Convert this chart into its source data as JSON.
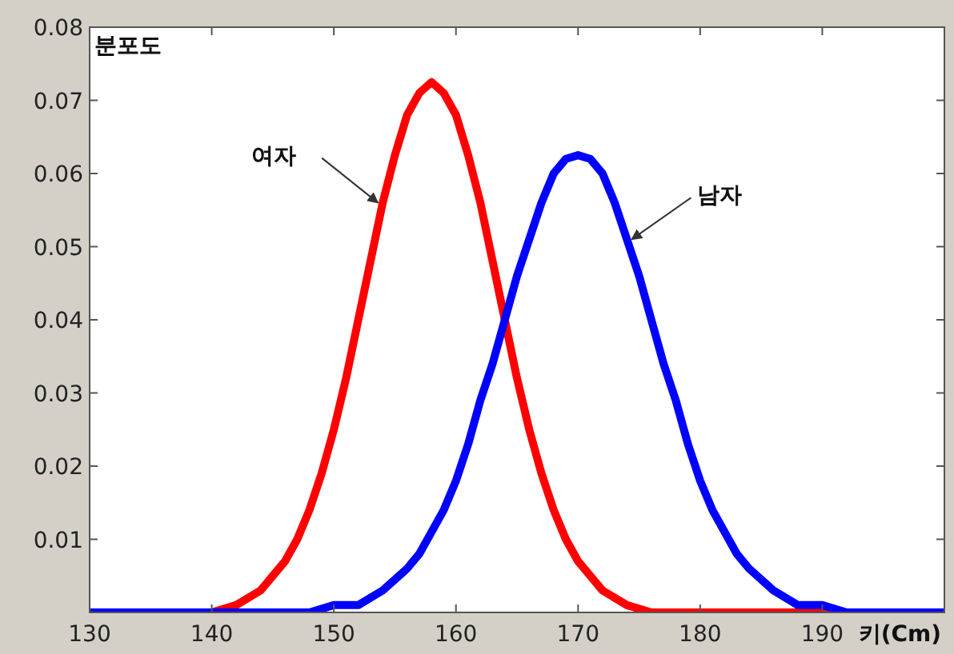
{
  "chart_data": {
    "type": "line",
    "xlabel": "키(Cm)",
    "ylabel": "분포도",
    "xlim": [
      130,
      200
    ],
    "ylim": [
      0,
      0.08
    ],
    "xticks": [
      130,
      140,
      150,
      160,
      170,
      180,
      190,
      {
        "value": 200,
        "label": null
      }
    ],
    "yticks": [
      0.01,
      0.02,
      0.03,
      0.04,
      0.05,
      0.06,
      0.07,
      0.08
    ],
    "marker": "none",
    "line_style": "solid",
    "series": [
      {
        "color": "#ff0000",
        "x": [
          130,
          136,
          140,
          142,
          144,
          146,
          147,
          148,
          149,
          150,
          151,
          152,
          153,
          154,
          155,
          156,
          157,
          158,
          159,
          160,
          161,
          162,
          163,
          164,
          165,
          166,
          167,
          168,
          169,
          170,
          172,
          174,
          176,
          180,
          186,
          200
        ],
        "values": [
          0,
          0,
          0,
          0.001,
          0.003,
          0.007,
          0.01,
          0.014,
          0.019,
          0.025,
          0.032,
          0.04,
          0.048,
          0.056,
          0.0625,
          0.068,
          0.071,
          0.0725,
          0.071,
          0.068,
          0.0625,
          0.056,
          0.048,
          0.04,
          0.032,
          0.025,
          0.019,
          0.014,
          0.01,
          0.007,
          0.003,
          0.001,
          0,
          0,
          0,
          0
        ]
      },
      {
        "color": "#0000ff",
        "x": [
          130,
          144,
          146,
          148,
          150,
          152,
          154,
          156,
          157,
          158,
          159,
          160,
          161,
          162,
          163,
          164,
          165,
          166,
          167,
          168,
          169,
          170,
          171,
          172,
          173,
          174,
          175,
          176,
          177,
          178,
          179,
          180,
          181,
          182,
          183,
          184,
          186,
          188,
          190,
          192,
          196,
          200
        ],
        "values": [
          0,
          0,
          0,
          0,
          0.001,
          0.001,
          0.003,
          0.006,
          0.008,
          0.011,
          0.014,
          0.018,
          0.023,
          0.029,
          0.034,
          0.04,
          0.046,
          0.051,
          0.056,
          0.06,
          0.062,
          0.0625,
          0.062,
          0.06,
          0.056,
          0.051,
          0.046,
          0.04,
          0.034,
          0.029,
          0.023,
          0.018,
          0.014,
          0.011,
          0.008,
          0.006,
          0.003,
          0.001,
          0.001,
          0,
          0,
          0
        ]
      }
    ],
    "annotations": [
      {
        "text": "여자",
        "x": 154,
        "y": 0.056
      },
      {
        "text": "남자",
        "x": 174,
        "y": 0.051
      }
    ]
  }
}
